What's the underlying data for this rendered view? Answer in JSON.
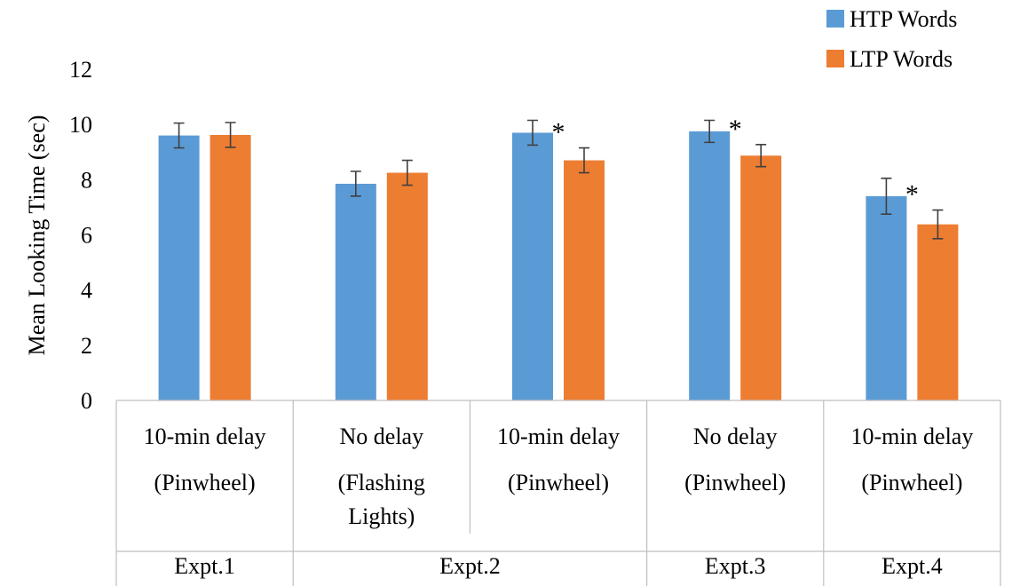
{
  "chart_data": {
    "type": "bar",
    "ylabel": "Mean Looking Time (sec)",
    "ylim": [
      0,
      12
    ],
    "yticks": [
      "0",
      "2",
      "4",
      "6",
      "8",
      "10",
      "12"
    ],
    "legend": {
      "placement": "top-right"
    },
    "categories": [
      {
        "line1": "10-min delay",
        "line2": "(Pinwheel)",
        "line3": ""
      },
      {
        "line1": "No delay",
        "line2": "(Flashing",
        "line3": "Lights)"
      },
      {
        "line1": "10-min delay",
        "line2": "(Pinwheel)",
        "line3": ""
      },
      {
        "line1": "No delay",
        "line2": "(Pinwheel)",
        "line3": ""
      },
      {
        "line1": "10-min delay",
        "line2": "(Pinwheel)",
        "line3": ""
      }
    ],
    "groups": [
      {
        "label": "Expt.1",
        "start": 0,
        "end": 0
      },
      {
        "label": "Expt.2",
        "start": 1,
        "end": 2
      },
      {
        "label": "Expt.3",
        "start": 3,
        "end": 3
      },
      {
        "label": "Expt.4",
        "start": 4,
        "end": 4
      }
    ],
    "series": [
      {
        "name": "HTP Words",
        "color": "#5b9bd5",
        "values": [
          9.6,
          7.85,
          9.7,
          9.75,
          7.4
        ],
        "errors": [
          0.45,
          0.45,
          0.45,
          0.4,
          0.65
        ]
      },
      {
        "name": "LTP Words",
        "color": "#ed7d31",
        "values": [
          9.62,
          8.25,
          8.7,
          8.87,
          6.38
        ],
        "errors": [
          0.45,
          0.45,
          0.45,
          0.4,
          0.52
        ]
      }
    ],
    "significance": [
      "",
      "",
      "*",
      "*",
      "*"
    ]
  }
}
